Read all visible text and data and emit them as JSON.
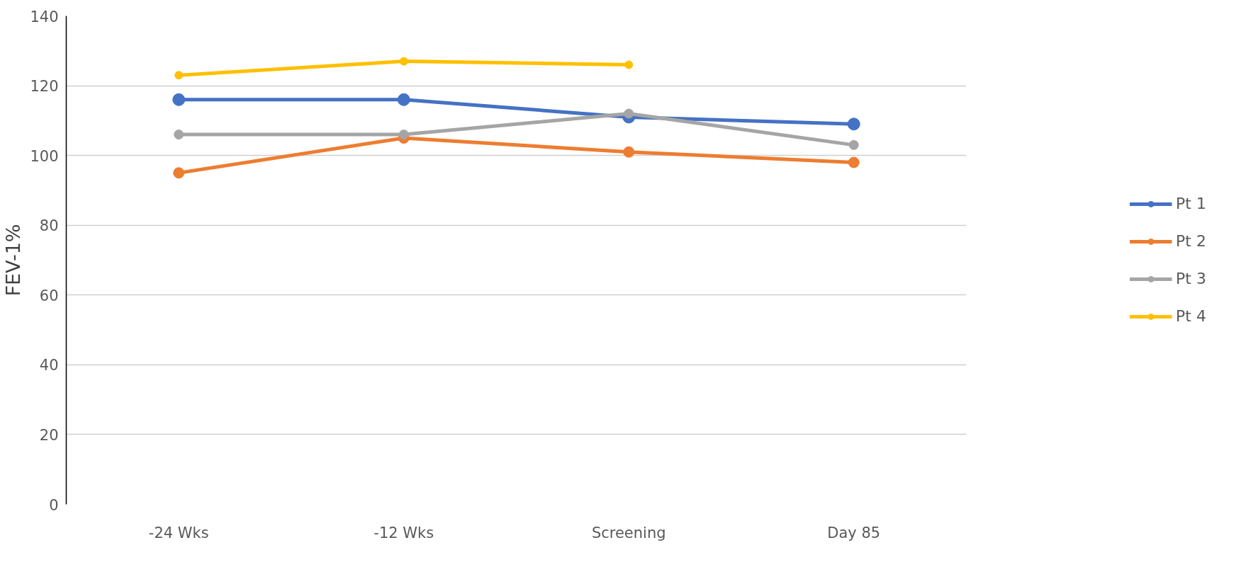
{
  "chart_data": {
    "type": "line",
    "ylabel": "FEV-1%",
    "categories": [
      "-24 Wks",
      "-12 Wks",
      "Screening",
      "Day 85"
    ],
    "series": [
      {
        "name": "Pt 1",
        "color": "#4472c4",
        "values": [
          116,
          116,
          111,
          109
        ]
      },
      {
        "name": "Pt 2",
        "color": "#ed7d31",
        "values": [
          95,
          105,
          101,
          98
        ]
      },
      {
        "name": "Pt 3",
        "color": "#a5a5a5",
        "values": [
          106,
          106,
          112,
          103
        ]
      },
      {
        "name": "Pt 4",
        "color": "#ffc000",
        "values": [
          123,
          127,
          126,
          null
        ]
      }
    ],
    "ylim": [
      0,
      140
    ],
    "yticks": [
      0,
      20,
      40,
      60,
      80,
      100,
      120,
      140
    ],
    "grid": "y",
    "legend": "right",
    "marker": "circle",
    "line_style": "solid"
  }
}
